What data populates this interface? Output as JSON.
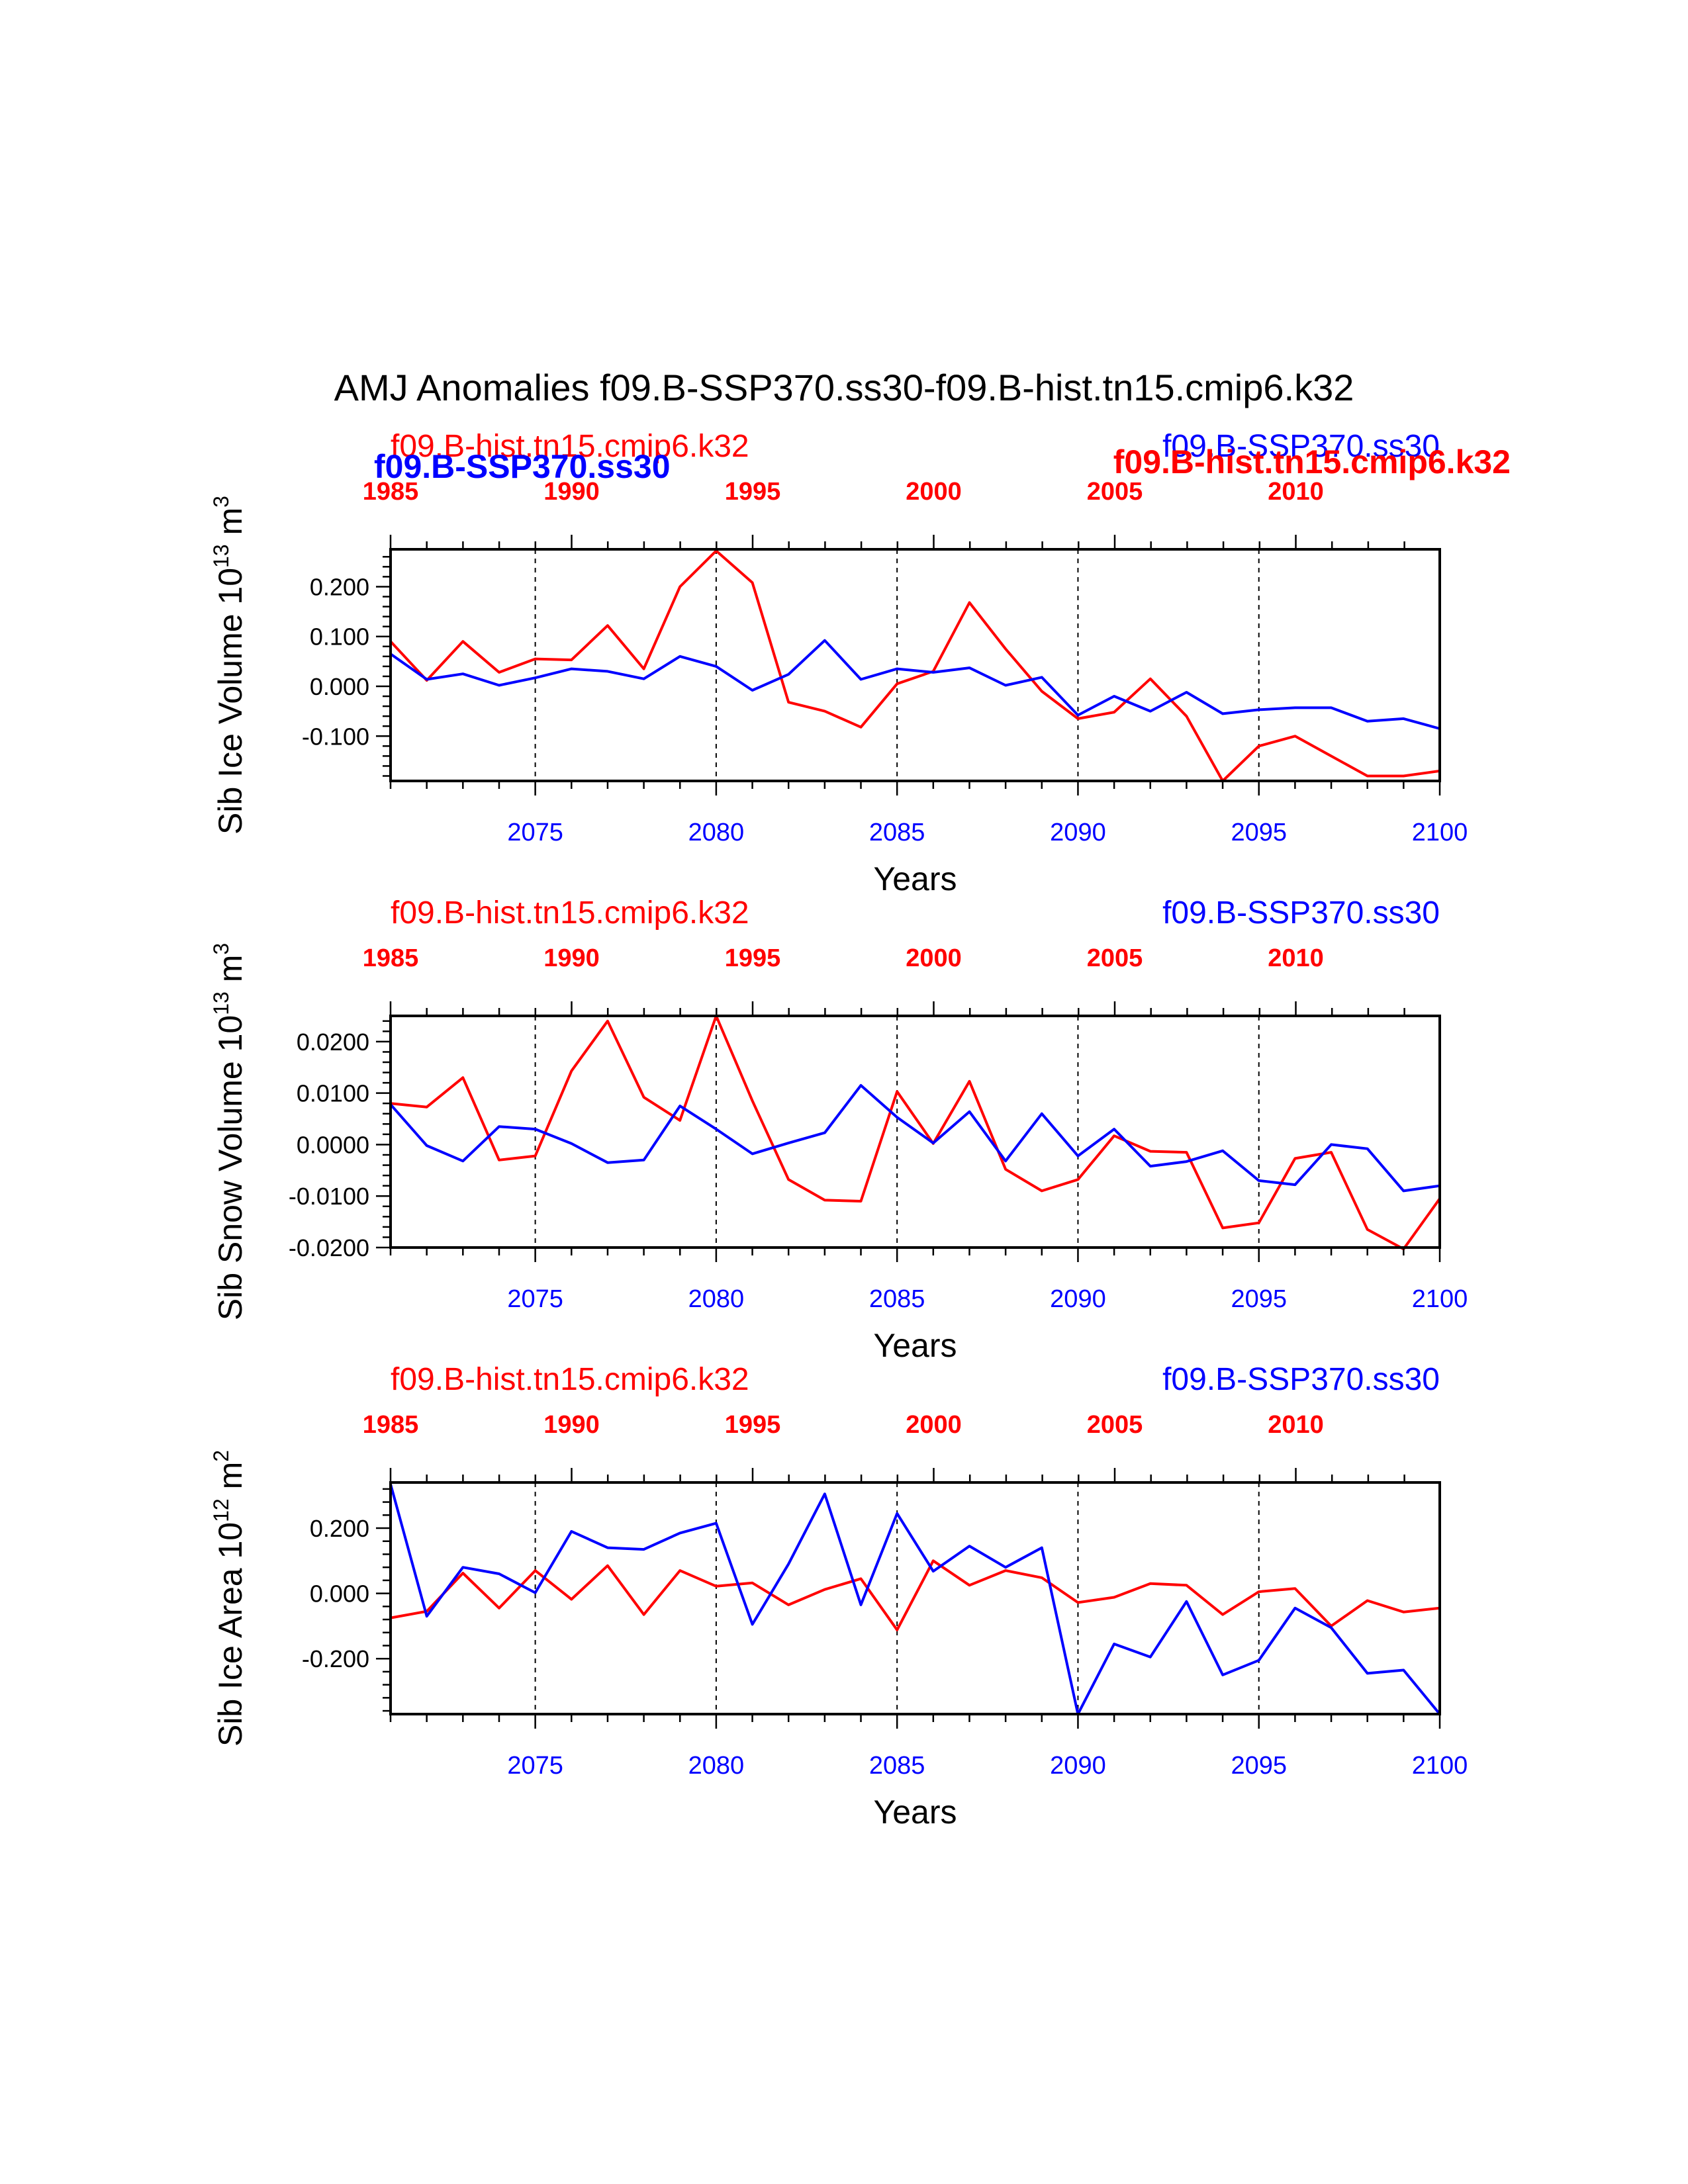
{
  "title": "AMJ Anomalies f09.B-SSP370.ss30-f09.B-hist.tn15.cmip6.k32",
  "colors": {
    "series_a": "#ff0000",
    "series_b": "#0000ff"
  },
  "overlay_labels": {
    "left": "f09.B-SSP370.ss30",
    "right": "f09.B-hist.tn15.cmip6.k32"
  },
  "chart_data": [
    {
      "type": "line",
      "title_left": "f09.B-hist.tn15.cmip6.k32",
      "title_right": "f09.B-SSP370.ss30",
      "ylabel": "Sib Ice Volume 10",
      "ylabel_exp": "13",
      "ylabel_unit": " m",
      "ylabel_unit_exp": "3",
      "xlabel": "Years",
      "xlim": [
        2071,
        2100
      ],
      "ylim": [
        -0.19,
        0.275
      ],
      "yticks": [
        0.2,
        0.1,
        0.0,
        -0.1
      ],
      "ytick_labels": [
        "0.200",
        "0.100",
        "0.000",
        "-0.100"
      ],
      "yminor_step": 0.02,
      "xticks": [
        2075,
        2080,
        2085,
        2090,
        2095,
        2100
      ],
      "top_ticks": [
        1985,
        1990,
        1995,
        2000,
        2005,
        2010
      ],
      "vlines": [
        2075,
        2080,
        2085,
        2090,
        2095
      ],
      "series": [
        {
          "color": "#ff0000",
          "x_start": 2071,
          "values": [
            0.09,
            0.012,
            0.09,
            0.028,
            0.055,
            0.053,
            0.122,
            0.035,
            0.2,
            0.272,
            0.208,
            -0.032,
            -0.05,
            -0.082,
            0.005,
            0.03,
            0.168,
            0.075,
            -0.01,
            -0.065,
            -0.052,
            0.015,
            -0.06,
            -0.19,
            -0.12,
            -0.1,
            -0.14,
            -0.18,
            -0.18,
            -0.17
          ]
        },
        {
          "color": "#0000ff",
          "x_start": 2071,
          "values": [
            0.065,
            0.014,
            0.025,
            0.002,
            0.017,
            0.035,
            0.03,
            0.015,
            0.06,
            0.04,
            -0.008,
            0.024,
            0.092,
            0.014,
            0.035,
            0.028,
            0.037,
            0.002,
            0.018,
            -0.058,
            -0.02,
            -0.05,
            -0.012,
            -0.055,
            -0.047,
            -0.043,
            -0.043,
            -0.07,
            -0.065,
            -0.085
          ]
        }
      ]
    },
    {
      "type": "line",
      "title_left": "f09.B-hist.tn15.cmip6.k32",
      "title_right": "f09.B-SSP370.ss30",
      "ylabel": "Sib Snow Volume 10",
      "ylabel_exp": "13",
      "ylabel_unit": " m",
      "ylabel_unit_exp": "3",
      "xlabel": "Years",
      "xlim": [
        2071,
        2100
      ],
      "ylim": [
        -0.02,
        0.025
      ],
      "yticks": [
        0.02,
        0.01,
        0.0,
        -0.01,
        -0.02
      ],
      "ytick_labels": [
        "0.0200",
        "0.0100",
        "0.0000",
        "-0.0100",
        "-0.0200"
      ],
      "yminor_step": 0.002,
      "xticks": [
        2075,
        2080,
        2085,
        2090,
        2095,
        2100
      ],
      "top_ticks": [
        1985,
        1990,
        1995,
        2000,
        2005,
        2010
      ],
      "vlines": [
        2075,
        2080,
        2085,
        2090,
        2095
      ],
      "series": [
        {
          "color": "#ff0000",
          "x_start": 2071,
          "values": [
            0.008,
            0.0073,
            0.013,
            -0.003,
            -0.0022,
            0.0143,
            0.024,
            0.0092,
            0.0047,
            0.025,
            0.0085,
            -0.0068,
            -0.0108,
            -0.011,
            0.0103,
            0.0002,
            0.0123,
            -0.0048,
            -0.009,
            -0.0068,
            0.0017,
            -0.0013,
            -0.0015,
            -0.0162,
            -0.0152,
            -0.0027,
            -0.0015,
            -0.0165,
            -0.0203,
            -0.0105
          ]
        },
        {
          "color": "#0000ff",
          "x_start": 2071,
          "values": [
            0.0078,
            -0.0002,
            -0.0032,
            0.0035,
            0.003,
            0.0002,
            -0.0035,
            -0.003,
            0.0075,
            0.003,
            -0.0018,
            0.0003,
            0.0023,
            0.0115,
            0.0053,
            0.0003,
            0.0064,
            -0.0032,
            0.006,
            -0.0022,
            0.003,
            -0.0042,
            -0.0033,
            -0.0012,
            -0.007,
            -0.0078,
            0.0,
            -0.0008,
            -0.009,
            -0.008
          ]
        }
      ]
    },
    {
      "type": "line",
      "title_left": "f09.B-hist.tn15.cmip6.k32",
      "title_right": "f09.B-SSP370.ss30",
      "ylabel": "Sib Ice Area 10",
      "ylabel_exp": "12",
      "ylabel_unit": " m",
      "ylabel_unit_exp": "2",
      "xlabel": "Years",
      "xlim": [
        2071,
        2100
      ],
      "ylim": [
        -0.37,
        0.34
      ],
      "yticks": [
        0.2,
        0.0,
        -0.2
      ],
      "ytick_labels": [
        "0.200",
        "0.000",
        "-0.200"
      ],
      "yminor_step": 0.04,
      "xticks": [
        2075,
        2080,
        2085,
        2090,
        2095,
        2100
      ],
      "top_ticks": [
        1985,
        1990,
        1995,
        2000,
        2005,
        2010
      ],
      "vlines": [
        2075,
        2080,
        2085,
        2090,
        2095
      ],
      "series": [
        {
          "color": "#ff0000",
          "x_start": 2071,
          "values": [
            -0.075,
            -0.055,
            0.062,
            -0.045,
            0.07,
            -0.018,
            0.085,
            -0.065,
            0.07,
            0.022,
            0.032,
            -0.035,
            0.012,
            0.045,
            -0.112,
            0.1,
            0.025,
            0.07,
            0.048,
            -0.028,
            -0.012,
            0.03,
            0.025,
            -0.065,
            0.005,
            0.015,
            -0.1,
            -0.022,
            -0.057,
            -0.045
          ]
        },
        {
          "color": "#0000ff",
          "x_start": 2071,
          "values": [
            0.335,
            -0.07,
            0.08,
            0.06,
            0.002,
            0.19,
            0.14,
            0.135,
            0.185,
            0.215,
            -0.095,
            0.09,
            0.305,
            -0.035,
            0.245,
            0.068,
            0.145,
            0.08,
            0.14,
            -0.37,
            -0.155,
            -0.195,
            -0.025,
            -0.25,
            -0.205,
            -0.045,
            -0.105,
            -0.245,
            -0.235,
            -0.37
          ]
        }
      ]
    }
  ]
}
